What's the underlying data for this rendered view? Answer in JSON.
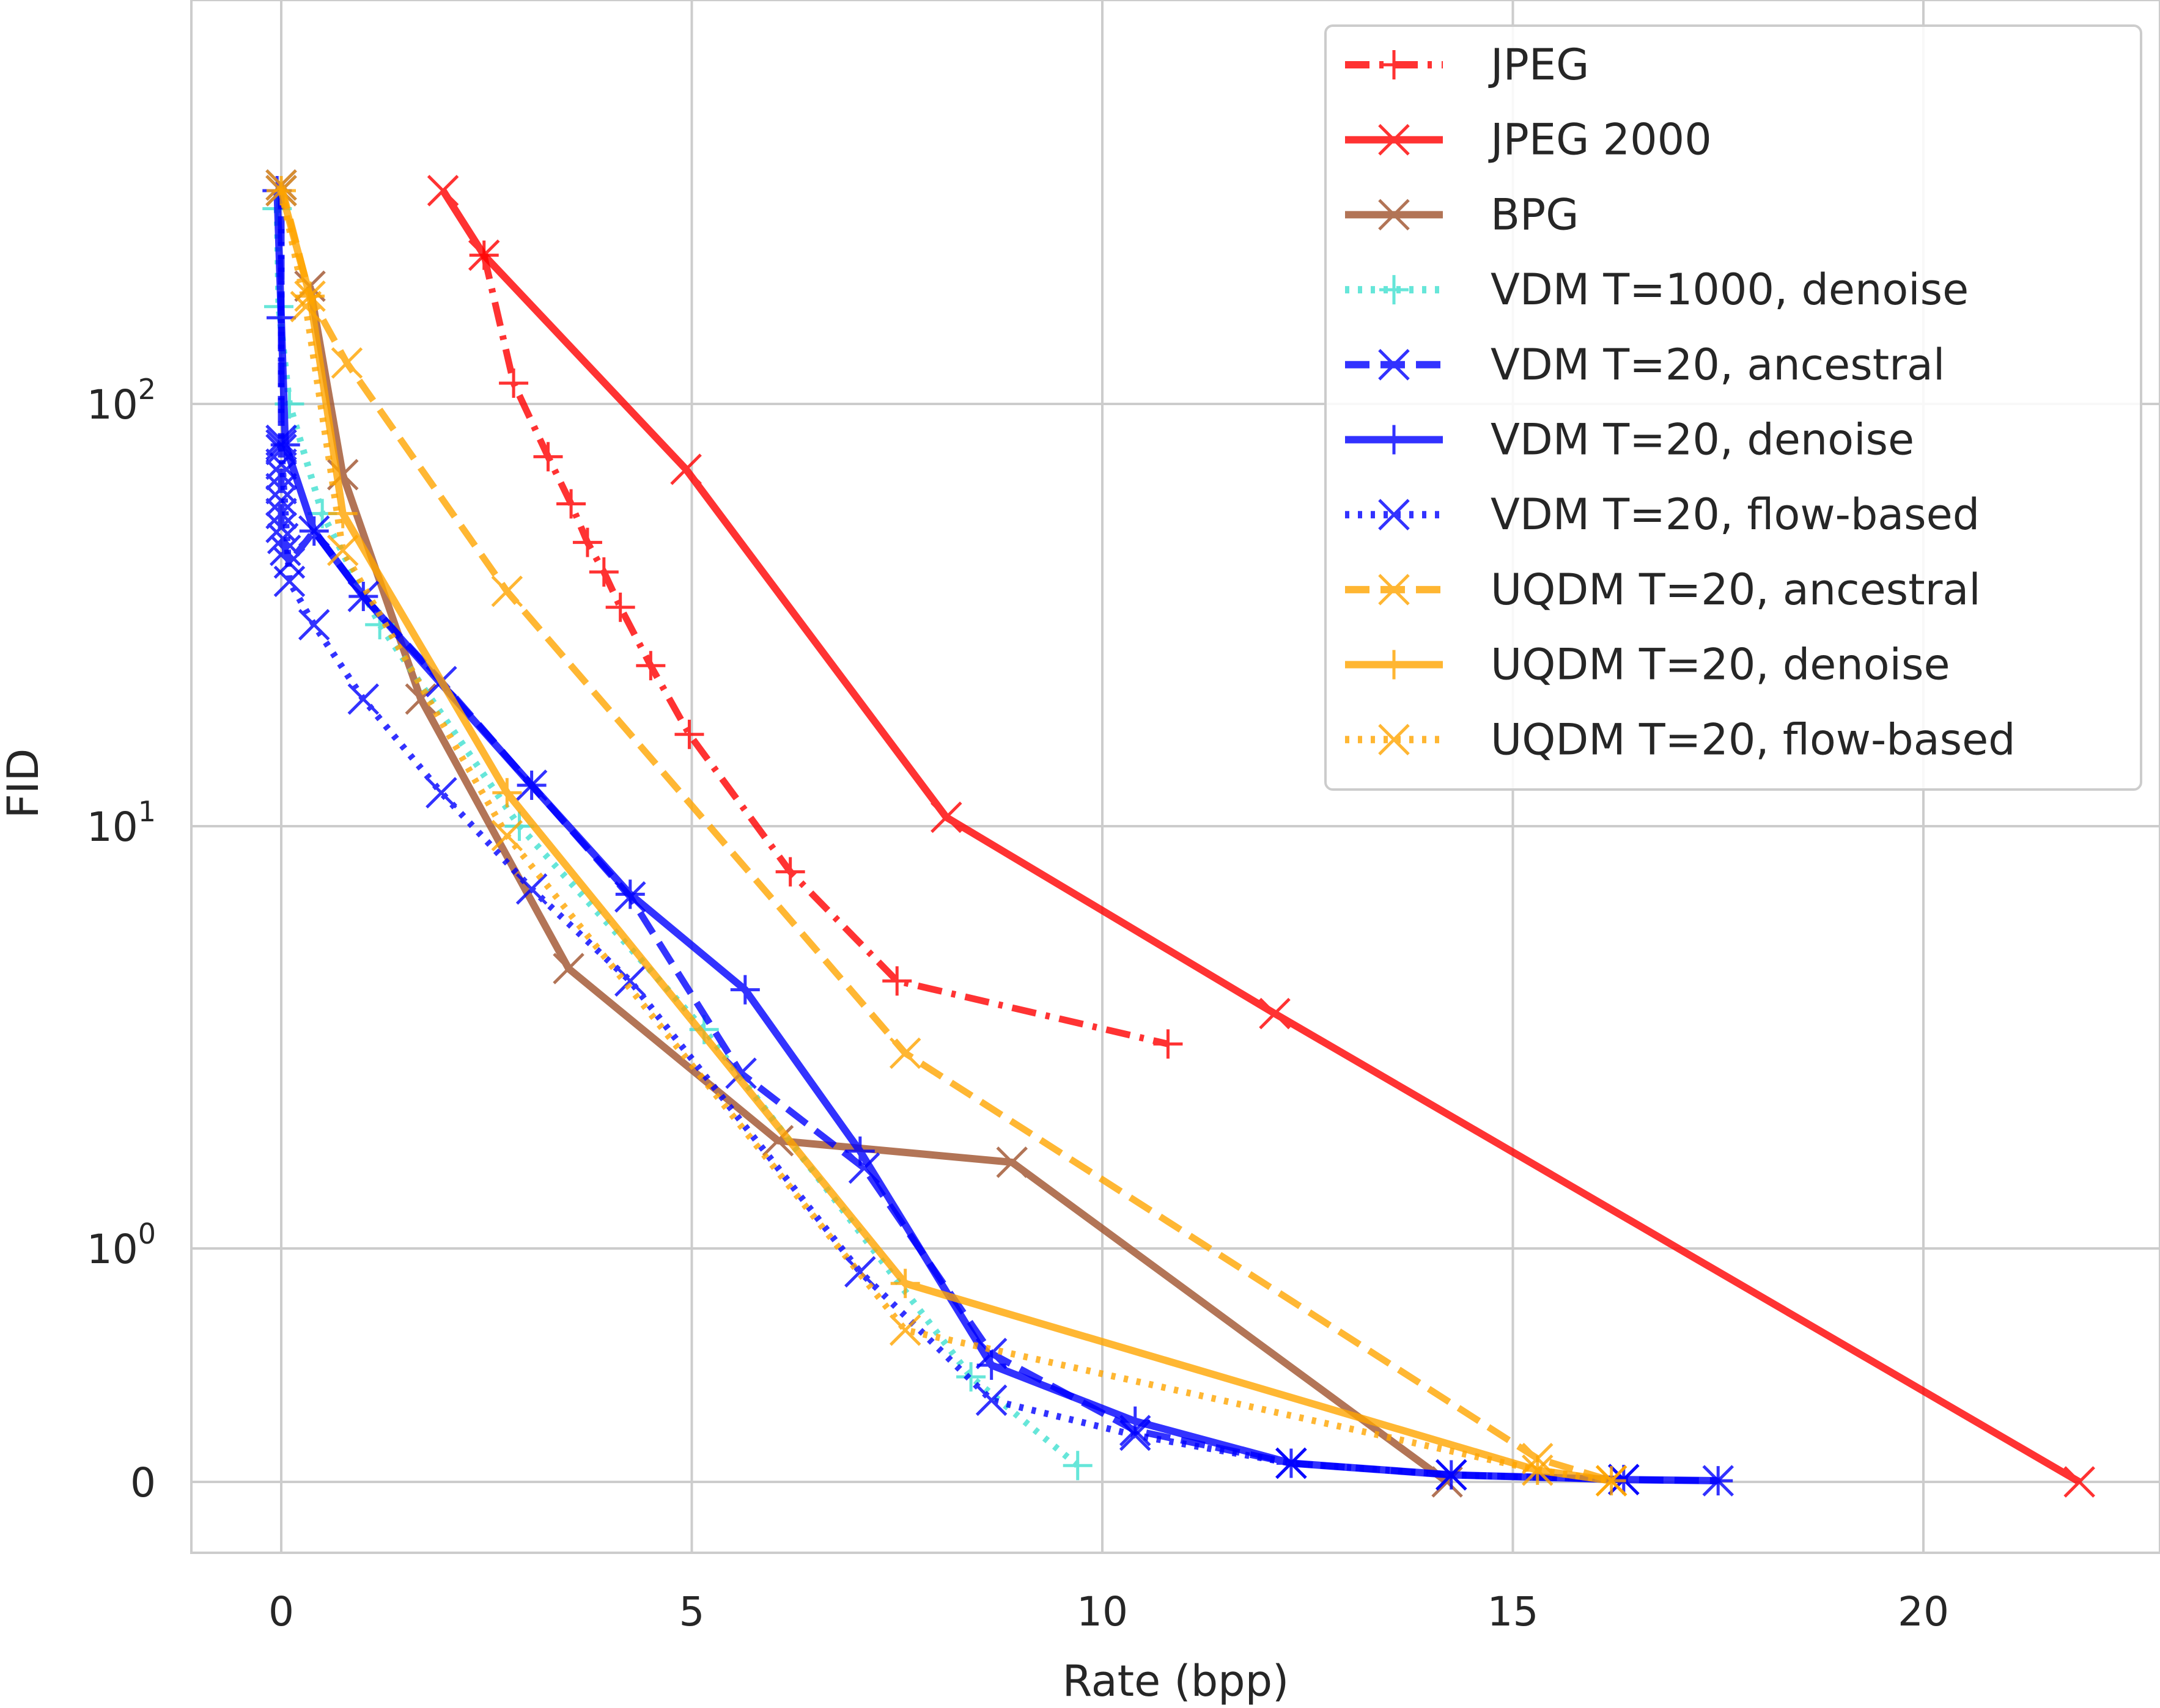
{
  "chart_data": {
    "type": "line",
    "title": "",
    "xlabel": "Rate (bpp)",
    "ylabel": "FID",
    "xlim": [
      -1.1,
      23.2
    ],
    "x_ticks": [
      0,
      5,
      10,
      15,
      20
    ],
    "x_tick_labels": [
      "0",
      "5",
      "10",
      "15",
      "20"
    ],
    "y_scale": "symlog",
    "y_ticks": [
      0,
      1,
      10,
      100
    ],
    "y_tick_labels": [
      {
        "base": "0",
        "exp": ""
      },
      {
        "base": "10",
        "exp": "0"
      },
      {
        "base": "10",
        "exp": "1"
      },
      {
        "base": "10",
        "exp": "2"
      }
    ],
    "grid": true,
    "legend_position": "top-right",
    "series": [
      {
        "name": "JPEG",
        "color": "#ff0000",
        "linestyle": "dashdot",
        "marker": "plus",
        "x": [
          2.47,
          2.83,
          3.25,
          3.53,
          3.73,
          3.93,
          4.13,
          4.5,
          4.97,
          6.2,
          7.5,
          10.8
        ],
        "y": [
          225,
          112,
          75,
          58,
          47,
          40,
          33,
          24,
          16.5,
          7.8,
          4.3,
          3.05
        ]
      },
      {
        "name": "JPEG 2000",
        "color": "#ff0000",
        "linestyle": "solid",
        "marker": "x",
        "x": [
          1.97,
          2.47,
          4.93,
          8.1,
          12.1,
          21.9
        ],
        "y": [
          320,
          225,
          70,
          10.5,
          3.6,
          0
        ]
      },
      {
        "name": "BPG",
        "color": "#a0522d",
        "linestyle": "solid",
        "marker": "x",
        "x": [
          0.35,
          0.75,
          1.7,
          3.5,
          6.05,
          8.9,
          14.2
        ],
        "y": [
          190,
          68,
          20,
          4.6,
          1.8,
          1.6,
          0
        ]
      },
      {
        "name": "VDM T=1000, denoise",
        "color": "#40e0d0",
        "linestyle": "dotted",
        "marker": "plus",
        "x": [
          -0.05,
          -0.03,
          0.1,
          0.5,
          1.2,
          2.9,
          5.15,
          8.4,
          9.7
        ],
        "y": [
          290,
          170,
          100,
          55,
          30,
          10,
          3.3,
          0.45,
          0.07
        ]
      },
      {
        "name": "VDM T=20, ancestral",
        "color": "#0000ff",
        "linestyle": "dashed",
        "marker": "x",
        "x": [
          0.0,
          0.0,
          0.0,
          0.0,
          0.0,
          0.0,
          0.0,
          0.0,
          0.0,
          0.02,
          0.05,
          0.1,
          0.4,
          1.0,
          1.95,
          3.05,
          4.25,
          5.6,
          7.1,
          8.65,
          10.4,
          12.3,
          14.25,
          16.35,
          17.5
        ],
        "y": [
          330,
          82,
          78,
          72,
          68,
          63,
          59,
          55,
          51,
          48,
          45,
          42,
          50,
          35,
          22,
          12.5,
          6.8,
          2.6,
          1.55,
          0.55,
          0.22,
          0.08,
          0.03,
          0.01,
          0.005
        ]
      },
      {
        "name": "VDM T=20, denoise",
        "color": "#0000ff",
        "linestyle": "solid",
        "marker": "plus",
        "x": [
          -0.05,
          0.0,
          0.05,
          0.4,
          1.0,
          3.05,
          4.25,
          5.65,
          7.05,
          8.65,
          10.4,
          12.3,
          14.25,
          16.35,
          17.5
        ],
        "y": [
          320,
          160,
          80,
          50,
          35,
          12.5,
          6.9,
          4.1,
          1.7,
          0.5,
          0.26,
          0.08,
          0.03,
          0.01,
          0.005
        ]
      },
      {
        "name": "VDM T=20, flow-based",
        "color": "#0000ff",
        "linestyle": "dotted",
        "marker": "x",
        "x": [
          0.0,
          0.0,
          0.1,
          0.4,
          1.0,
          1.95,
          3.05,
          4.25,
          7.05,
          8.65,
          10.4,
          12.3,
          14.25,
          16.35
        ],
        "y": [
          320,
          80,
          38,
          30,
          20,
          12,
          7.1,
          4.3,
          0.9,
          0.35,
          0.2,
          0.08,
          0.03,
          0.01
        ]
      },
      {
        "name": "UQDM T=20, ancestral",
        "color": "#ffa500",
        "linestyle": "dashed",
        "marker": "x",
        "x": [
          0.0,
          0.35,
          0.8,
          2.75,
          7.6,
          15.3,
          16.2
        ],
        "y": [
          330,
          180,
          125,
          36,
          2.9,
          0.1,
          0.005
        ]
      },
      {
        "name": "UQDM T=20, denoise",
        "color": "#ffa500",
        "linestyle": "solid",
        "marker": "plus",
        "x": [
          0.0,
          0.35,
          0.75,
          2.75,
          7.6,
          15.3,
          16.2
        ],
        "y": [
          320,
          180,
          55,
          12,
          0.85,
          0.05,
          0.005
        ]
      },
      {
        "name": "UQDM T=20, flow-based",
        "color": "#ffa500",
        "linestyle": "dotted",
        "marker": "x",
        "x": [
          0.0,
          0.3,
          0.75,
          2.75,
          7.6,
          15.3,
          16.2
        ],
        "y": [
          320,
          170,
          45,
          9.5,
          0.65,
          0.05,
          0.005
        ]
      }
    ]
  }
}
